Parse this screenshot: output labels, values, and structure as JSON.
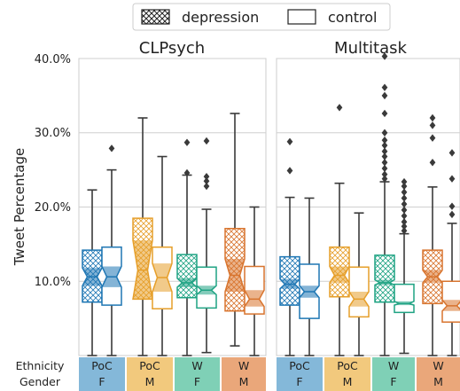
{
  "legend": {
    "items": [
      {
        "label": "depression",
        "pattern": "crosshatch"
      },
      {
        "label": "control",
        "pattern": "none"
      }
    ]
  },
  "y_axis": {
    "label": "Tweet Percentage",
    "ticks": [
      {
        "value": 10,
        "label": "10.0%"
      },
      {
        "value": 20,
        "label": "20.0%"
      },
      {
        "value": 30,
        "label": "30.0%"
      },
      {
        "value": 40,
        "label": "40.0%"
      }
    ],
    "range": [
      0,
      40
    ]
  },
  "bottom_rows": {
    "ethnicity_label": "Ethnicity",
    "gender_label": "Gender"
  },
  "groups": [
    {
      "ethnicity": "PoC",
      "gender": "F",
      "color": "#1f77b4",
      "band_color": "#84b8d9"
    },
    {
      "ethnicity": "PoC",
      "gender": "M",
      "color": "#e69f2a",
      "band_color": "#f2c97d"
    },
    {
      "ethnicity": "W",
      "gender": "F",
      "color": "#1fa383",
      "band_color": "#7fd0b6"
    },
    {
      "ethnicity": "W",
      "gender": "M",
      "color": "#d8742e",
      "band_color": "#eaa77a"
    }
  ],
  "chart_data": {
    "type": "boxplot",
    "panels": [
      {
        "title": "CLPsych",
        "boxes": [
          {
            "group": "PoC F",
            "series": "depression",
            "q1": 7.2,
            "median": 10.6,
            "q3": 14.2,
            "notch_low": 9.4,
            "notch_high": 11.8,
            "whisker_low": 0,
            "whisker_high": 22.3,
            "outliers": []
          },
          {
            "group": "PoC F",
            "series": "control",
            "q1": 6.8,
            "median": 10.6,
            "q3": 14.6,
            "notch_low": 9.2,
            "notch_high": 12.0,
            "whisker_low": 0,
            "whisker_high": 25.0,
            "outliers": [
              27.9
            ]
          },
          {
            "group": "PoC M",
            "series": "depression",
            "q1": 7.6,
            "median": 11.5,
            "q3": 18.5,
            "notch_low": 7.6,
            "notch_high": 15.5,
            "whisker_low": 0,
            "whisker_high": 32.0,
            "outliers": []
          },
          {
            "group": "PoC M",
            "series": "control",
            "q1": 6.3,
            "median": 10.5,
            "q3": 14.6,
            "notch_low": 8.6,
            "notch_high": 12.4,
            "whisker_low": 0,
            "whisker_high": 26.8,
            "outliers": []
          },
          {
            "group": "W F",
            "series": "depression",
            "q1": 7.8,
            "median": 9.8,
            "q3": 13.6,
            "notch_low": 9.2,
            "notch_high": 10.4,
            "whisker_low": 0,
            "whisker_high": 24.3,
            "outliers": [
              24.6,
              28.7
            ]
          },
          {
            "group": "W F",
            "series": "control",
            "q1": 6.4,
            "median": 8.8,
            "q3": 11.9,
            "notch_low": 8.2,
            "notch_high": 9.4,
            "whisker_low": 0.4,
            "whisker_high": 19.7,
            "outliers": [
              22.8,
              23.5,
              24.1,
              28.9
            ]
          },
          {
            "group": "W M",
            "series": "depression",
            "q1": 6.0,
            "median": 10.8,
            "q3": 17.1,
            "notch_low": 8.6,
            "notch_high": 13.0,
            "whisker_low": 1.3,
            "whisker_high": 32.6,
            "outliers": []
          },
          {
            "group": "W M",
            "series": "control",
            "q1": 5.6,
            "median": 7.6,
            "q3": 12.0,
            "notch_low": 6.6,
            "notch_high": 8.8,
            "whisker_low": 0,
            "whisker_high": 20.0,
            "outliers": []
          }
        ]
      },
      {
        "title": "Multitask",
        "boxes": [
          {
            "group": "PoC F",
            "series": "depression",
            "q1": 6.8,
            "median": 9.6,
            "q3": 13.3,
            "notch_low": 9.0,
            "notch_high": 10.3,
            "whisker_low": 0,
            "whisker_high": 21.3,
            "outliers": [
              24.9,
              28.8
            ]
          },
          {
            "group": "PoC F",
            "series": "control",
            "q1": 5.0,
            "median": 8.6,
            "q3": 12.3,
            "notch_low": 7.8,
            "notch_high": 9.4,
            "whisker_low": 0,
            "whisker_high": 21.2,
            "outliers": []
          },
          {
            "group": "PoC M",
            "series": "depression",
            "q1": 7.9,
            "median": 10.8,
            "q3": 14.6,
            "notch_low": 9.8,
            "notch_high": 12.0,
            "whisker_low": 0,
            "whisker_high": 23.2,
            "outliers": [
              33.4
            ]
          },
          {
            "group": "PoC M",
            "series": "control",
            "q1": 5.2,
            "median": 7.6,
            "q3": 11.9,
            "notch_low": 6.6,
            "notch_high": 8.6,
            "whisker_low": 0,
            "whisker_high": 19.2,
            "outliers": []
          },
          {
            "group": "W F",
            "series": "depression",
            "q1": 7.2,
            "median": 9.8,
            "q3": 13.5,
            "notch_low": 9.5,
            "notch_high": 10.2,
            "whisker_low": 0,
            "whisker_high": 23.4,
            "outliers": [
              23.8,
              24.4,
              25.2,
              26.0,
              26.8,
              27.5,
              28.3,
              29.0,
              30.0,
              32.6,
              35.0,
              36.1,
              40.3
            ]
          },
          {
            "group": "W F",
            "series": "control",
            "q1": 5.8,
            "median": 7.0,
            "q3": 9.6,
            "notch_low": 6.8,
            "notch_high": 7.3,
            "whisker_low": 0.3,
            "whisker_high": 16.4,
            "outliers": [
              16.8,
              17.4,
              18.0,
              18.8,
              19.6,
              20.4,
              21.2,
              22.0,
              22.8,
              23.4
            ]
          },
          {
            "group": "W M",
            "series": "depression",
            "q1": 7.0,
            "median": 10.6,
            "q3": 14.2,
            "notch_low": 9.8,
            "notch_high": 11.5,
            "whisker_low": 0,
            "whisker_high": 22.7,
            "outliers": [
              26.0,
              29.3,
              31.0,
              32.0
            ]
          },
          {
            "group": "W M",
            "series": "control",
            "q1": 4.5,
            "median": 6.7,
            "q3": 10.0,
            "notch_low": 6.0,
            "notch_high": 7.5,
            "whisker_low": 0,
            "whisker_high": 17.8,
            "outliers": [
              19.0,
              20.1,
              23.8,
              27.3
            ]
          }
        ]
      }
    ]
  }
}
